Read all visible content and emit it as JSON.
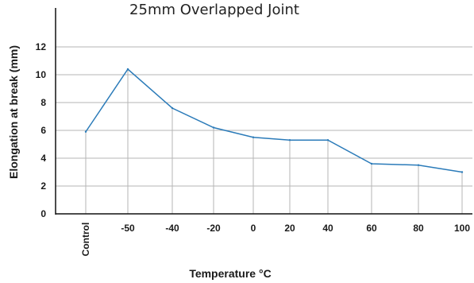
{
  "chart_data": {
    "type": "line",
    "title": "25mm Overlapped Joint",
    "xlabel": "Temperature °C",
    "ylabel": "Elongation at break (mm)",
    "categories": [
      "Control",
      "-50",
      "-40",
      "-20",
      "0",
      "20",
      "40",
      "60",
      "80",
      "100"
    ],
    "y_ticks": [
      "0",
      "2",
      "4",
      "6",
      "8",
      "10",
      "12"
    ],
    "ylim": [
      0,
      12
    ],
    "grid": true,
    "series": [
      {
        "values": [
          5.9,
          10.4,
          7.6,
          6.2,
          5.5,
          5.3,
          5.3,
          3.6,
          3.5,
          3.0
        ]
      }
    ],
    "colors": {
      "line": "#2b7bb9",
      "grid": "#b5b5b5",
      "axis": "#111111"
    }
  }
}
